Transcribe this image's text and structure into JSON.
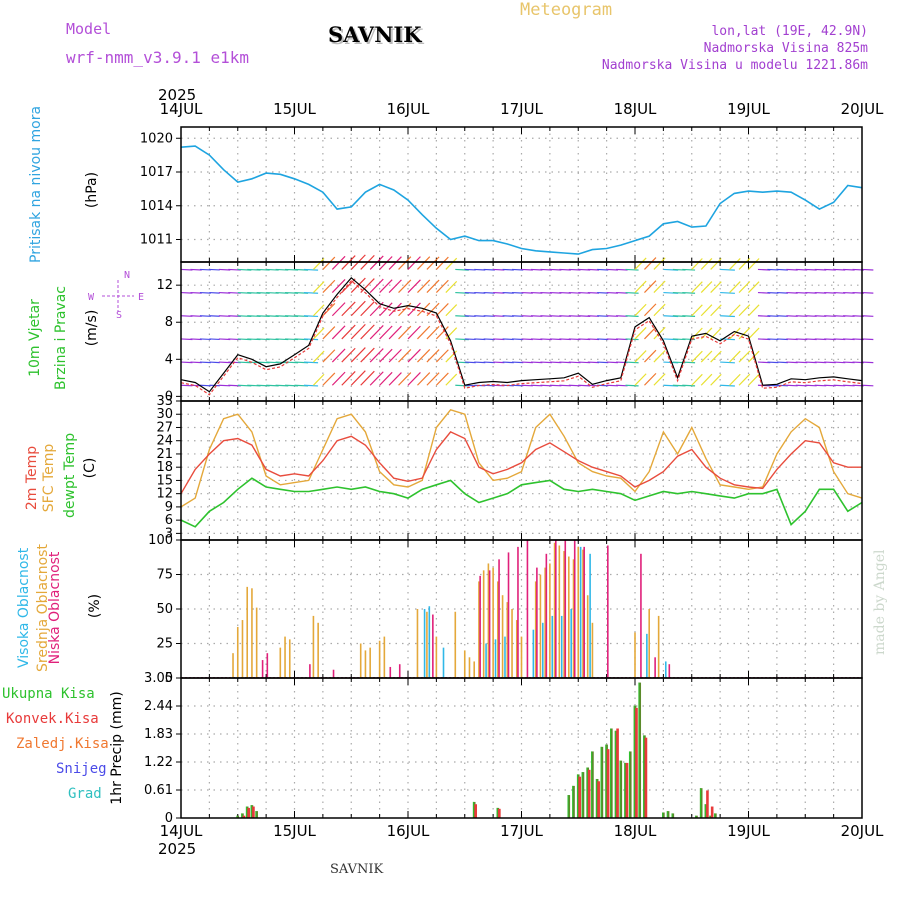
{
  "header": {
    "model_label": "Model",
    "model_name": "wrf-nmm_v3.9.1  e1km",
    "station": "SAVNIK",
    "meteogram": "Meteogram",
    "lonlat": "lon,lat (19E, 42.9N)",
    "elev": "Nadmorska Visina 825m",
    "elev_model": "Nadmorska Visina u modelu 1221.86m",
    "footer_station": "SAVNIK",
    "credit": "made by Angel"
  },
  "time_axis": {
    "year": "2025",
    "labels": [
      "14JUL",
      "15JUL",
      "16JUL",
      "17JUL",
      "18JUL",
      "19JUL",
      "20JUL"
    ]
  },
  "colors": {
    "pressure": "#1ea4e0",
    "wind_black": "#000000",
    "wind_red": "#e83a3a",
    "temp2m": "#e84c3d",
    "sfc": "#e4a83a",
    "dewpt": "#2ec22e",
    "high_cloud": "#30b8e8",
    "mid_cloud": "#e4a83a",
    "low_cloud": "#e0207a",
    "precip_total": "#2ec22e",
    "precip_conv": "#e83a3a",
    "precip_frozen": "#f07830",
    "snow": "#4b4be8",
    "hail": "#30c0c0",
    "purple": "#b34fd8"
  },
  "panels": {
    "pressure": {
      "labels": [
        "Pritisak na nivou mora"
      ],
      "unit": "(hPa)",
      "ticks": [
        "1020",
        "1017",
        "1014",
        "1011"
      ]
    },
    "wind": {
      "labels": [
        "10m Vjetar",
        "Brzina i Pravac"
      ],
      "unit": "(m/s)",
      "ticks": [
        "12",
        "8",
        "4",
        "0"
      ],
      "compass": {
        "n": "N",
        "w": "W",
        "e": "E",
        "s": "S"
      }
    },
    "temp": {
      "labels": [
        "2m Temp",
        "SFC Temp",
        "dewpt Temp"
      ],
      "unit": "(C)",
      "ticks": [
        "33",
        "30",
        "27",
        "24",
        "21",
        "18",
        "15",
        "12",
        "9",
        "6",
        "3"
      ]
    },
    "cloud": {
      "labels": [
        "Visoka Oblacnost",
        "Srednja Oblacnost",
        "Niska Oblacnost"
      ],
      "unit": "(%)",
      "ticks": [
        "100",
        "75",
        "50",
        "25",
        "0"
      ]
    },
    "precip": {
      "labels": [
        "Ukupna Kisa",
        "Konvek.Kisa",
        "Zaledj.Kisa",
        "Snijeg",
        "Grad"
      ],
      "unit": "1hr Precip (mm)",
      "ticks": [
        "3.05",
        "2.44",
        "1.83",
        "1.22",
        "0.61",
        "0"
      ]
    }
  },
  "chart_data": [
    {
      "type": "line",
      "panel": "pressure",
      "x_unit": "hours since 14JUL 00",
      "ylim": [
        1009,
        1021
      ],
      "series": [
        {
          "x": [
            0,
            3,
            6,
            9,
            12,
            15,
            18,
            21,
            24,
            27,
            30,
            33,
            36,
            39,
            42,
            45,
            48,
            51,
            54,
            57,
            60,
            63,
            66,
            69,
            72,
            75,
            78,
            81,
            84,
            87,
            90,
            93,
            96,
            99,
            102,
            105,
            108,
            111,
            114,
            117,
            120,
            123,
            126,
            129,
            132,
            135,
            138,
            141,
            144
          ],
          "values": [
            1019.2,
            1019.3,
            1018.5,
            1017.2,
            1016.1,
            1016.4,
            1016.9,
            1016.8,
            1016.4,
            1015.9,
            1015.2,
            1013.7,
            1013.9,
            1015.2,
            1015.9,
            1015.4,
            1014.5,
            1013.2,
            1012.0,
            1011.0,
            1011.3,
            1010.9,
            1010.9,
            1010.6,
            1010.2,
            1010.0,
            1009.9,
            1009.8,
            1009.7,
            1010.1,
            1010.2,
            1010.5,
            1010.9,
            1011.3,
            1012.4,
            1012.6,
            1012.1,
            1012.2,
            1014.2,
            1015.1,
            1015.3,
            1015.2,
            1015.3,
            1015.2,
            1014.5,
            1013.7,
            1014.3,
            1015.8,
            1015.6
          ]
        }
      ]
    },
    {
      "type": "line",
      "panel": "wind",
      "x_unit": "hours since 14JUL 00",
      "ylim": [
        -0.5,
        14.5
      ],
      "series": [
        {
          "x": [
            0,
            3,
            6,
            9,
            12,
            15,
            18,
            21,
            24,
            27,
            30,
            33,
            36,
            39,
            42,
            45,
            48,
            51,
            54,
            57,
            60,
            63,
            66,
            69,
            72,
            75,
            78,
            81,
            84,
            87,
            90,
            93,
            96,
            99,
            102,
            105,
            108,
            111,
            114,
            117,
            120,
            123,
            126,
            129,
            132,
            135,
            138,
            141,
            144
          ],
          "values": [
            1.8,
            1.5,
            0.5,
            2.5,
            4.5,
            4.0,
            3.2,
            3.5,
            4.5,
            5.5,
            9.0,
            11.0,
            12.8,
            11.5,
            10.0,
            9.5,
            9.8,
            9.5,
            9.0,
            6.0,
            1.2,
            1.5,
            1.6,
            1.5,
            1.7,
            1.8,
            1.9,
            2.0,
            2.5,
            1.3,
            1.7,
            2.0,
            7.5,
            8.5,
            6.0,
            2.0,
            6.5,
            6.8,
            6.0,
            7.0,
            6.5,
            1.2,
            1.3,
            1.9,
            1.8,
            2.0,
            2.1,
            1.9,
            1.7
          ]
        }
      ]
    },
    {
      "type": "line",
      "panel": "temp",
      "x_unit": "hours since 14JUL 00",
      "ylim": [
        1.5,
        33
      ],
      "series": [
        {
          "x": [
            0,
            3,
            6,
            9,
            12,
            15,
            18,
            21,
            24,
            27,
            30,
            33,
            36,
            39,
            42,
            45,
            48,
            51,
            54,
            57,
            60,
            63,
            66,
            69,
            72,
            75,
            78,
            81,
            84,
            87,
            90,
            93,
            96,
            99,
            102,
            105,
            108,
            111,
            114,
            117,
            120,
            123,
            126,
            129,
            132,
            135,
            138,
            141,
            144
          ],
          "values": [
            12,
            17.5,
            21,
            24,
            24.5,
            23,
            17.5,
            16,
            16.5,
            16,
            19.5,
            24,
            25,
            23,
            19,
            15.5,
            14.8,
            15.5,
            22,
            26,
            24.5,
            18,
            16.5,
            17.5,
            19,
            22,
            23.5,
            21.5,
            19.5,
            18,
            17,
            16,
            13.5,
            15,
            17,
            20.5,
            22,
            18,
            15.5,
            14,
            13.5,
            13.2,
            17.5,
            21,
            24,
            23.5,
            19,
            18,
            18
          ]
        },
        {
          "x": [
            0,
            3,
            6,
            9,
            12,
            15,
            18,
            21,
            24,
            27,
            30,
            33,
            36,
            39,
            42,
            45,
            48,
            51,
            54,
            57,
            60,
            63,
            66,
            69,
            72,
            75,
            78,
            81,
            84,
            87,
            90,
            93,
            96,
            99,
            102,
            105,
            108,
            111,
            114,
            117,
            120,
            123,
            126,
            129,
            132,
            135,
            138,
            141,
            144
          ],
          "values": [
            9,
            11,
            22,
            29,
            30,
            26,
            16,
            14,
            14.5,
            15,
            22,
            29,
            30,
            26,
            17,
            14,
            13.5,
            15,
            27,
            31,
            30,
            19,
            15,
            15.5,
            17,
            27,
            30,
            25,
            19,
            17,
            16,
            15.5,
            12.5,
            17,
            26,
            21,
            27,
            20,
            14,
            13.5,
            13,
            13.5,
            21,
            26,
            29,
            27,
            17,
            12,
            11
          ]
        },
        {
          "x": [
            0,
            3,
            6,
            9,
            12,
            15,
            18,
            21,
            24,
            27,
            30,
            33,
            36,
            39,
            42,
            45,
            48,
            51,
            54,
            57,
            60,
            63,
            66,
            69,
            72,
            75,
            78,
            81,
            84,
            87,
            90,
            93,
            96,
            99,
            102,
            105,
            108,
            111,
            114,
            117,
            120,
            123,
            126,
            129,
            132,
            135,
            138,
            141,
            144
          ],
          "values": [
            6,
            4.5,
            8,
            10,
            13,
            15.5,
            13.5,
            13,
            12.5,
            12.5,
            13,
            13.5,
            13,
            13.5,
            12.5,
            12,
            11,
            13,
            14,
            15,
            12,
            10,
            11,
            12,
            14,
            14.5,
            15,
            13,
            12.5,
            13,
            12.5,
            12,
            10.5,
            11.5,
            12.5,
            12,
            12.5,
            12,
            11.5,
            11,
            12,
            12,
            13,
            5,
            8,
            13,
            13,
            8,
            10
          ]
        }
      ]
    },
    {
      "type": "bar",
      "panel": "cloud",
      "x_unit": "hours since 14JUL 00",
      "ylim": [
        0,
        100
      ],
      "series": [
        {
          "name": "Srednja Oblacnost",
          "x": [
            11,
            12,
            13,
            14,
            15,
            16,
            21,
            22,
            23,
            28,
            29,
            38,
            39,
            40,
            42,
            43,
            50,
            52,
            54,
            58,
            60,
            61,
            62,
            63,
            64,
            65,
            66,
            67,
            68,
            69,
            70,
            71,
            72,
            75,
            76,
            77,
            78,
            79,
            80,
            81,
            82,
            83,
            84,
            85,
            86,
            87,
            96,
            99,
            101
          ],
          "values": [
            18,
            37,
            42,
            66,
            65,
            51,
            22,
            30,
            28,
            45,
            40,
            25,
            20,
            22,
            27,
            30,
            50,
            48,
            30,
            48,
            20,
            15,
            12,
            70,
            78,
            83,
            80,
            70,
            60,
            55,
            50,
            42,
            30,
            70,
            75,
            80,
            83,
            98,
            96,
            92,
            88,
            86,
            95,
            93,
            60,
            40,
            33,
            50,
            45
          ]
        },
        {
          "name": "Niska Oblacnost",
          "x": [
            17,
            18,
            27,
            32,
            44,
            46,
            53,
            63,
            65,
            67,
            69,
            71,
            73,
            75,
            77,
            79,
            81,
            83,
            85,
            90,
            97,
            100,
            103
          ],
          "values": [
            13,
            18,
            10,
            6,
            8,
            10,
            46,
            74,
            78,
            86,
            91,
            95,
            100,
            80,
            90,
            100,
            100,
            100,
            95,
            96,
            90,
            15,
            10
          ]
        },
        {
          "name": "Visoka Oblacnost",
          "x": [
            51,
            52,
            55,
            64,
            66,
            68,
            74,
            76,
            78,
            80,
            82,
            84,
            86,
            98,
            102
          ],
          "values": [
            50,
            52,
            22,
            25,
            28,
            30,
            35,
            40,
            45,
            45,
            50,
            95,
            90,
            32,
            12
          ]
        }
      ]
    },
    {
      "type": "bar",
      "panel": "precip",
      "x_unit": "hours since 14JUL 00",
      "ylim": [
        0,
        3.05
      ],
      "series": [
        {
          "name": "Ukupna Kisa",
          "x": [
            12,
            13,
            14,
            15,
            16,
            62,
            64,
            67,
            82,
            83,
            84,
            85,
            86,
            87,
            88,
            89,
            90,
            91,
            92,
            93,
            94,
            95,
            96,
            97,
            98,
            99,
            100,
            101,
            102,
            103,
            104,
            105,
            106,
            107,
            108,
            109,
            110,
            111,
            112,
            113,
            114,
            115,
            120,
            121
          ],
          "values": [
            0.05,
            0.1,
            0.25,
            0.28,
            0.15,
            0.35,
            0.0,
            0.22,
            0.5,
            0.7,
            0.95,
            1.0,
            1.1,
            1.45,
            0.85,
            1.55,
            1.6,
            1.95,
            1.9,
            1.25,
            1.2,
            1.45,
            2.45,
            2.95,
            1.8,
            0,
            0,
            0,
            0.12,
            0.15,
            0.1,
            0,
            0,
            0,
            0,
            0.05,
            0.65,
            0.3,
            0.05,
            0.1,
            0,
            0,
            0,
            0
          ]
        },
        {
          "name": "Konvek.Kisa",
          "x": [
            13,
            14,
            15,
            62,
            67,
            84,
            86,
            88,
            90,
            92,
            94,
            96,
            98,
            111,
            112
          ],
          "values": [
            0.05,
            0.22,
            0.25,
            0.3,
            0.2,
            0.9,
            1.05,
            0.8,
            1.5,
            1.95,
            1.2,
            2.4,
            1.75,
            0.6,
            0.25
          ]
        }
      ]
    }
  ]
}
